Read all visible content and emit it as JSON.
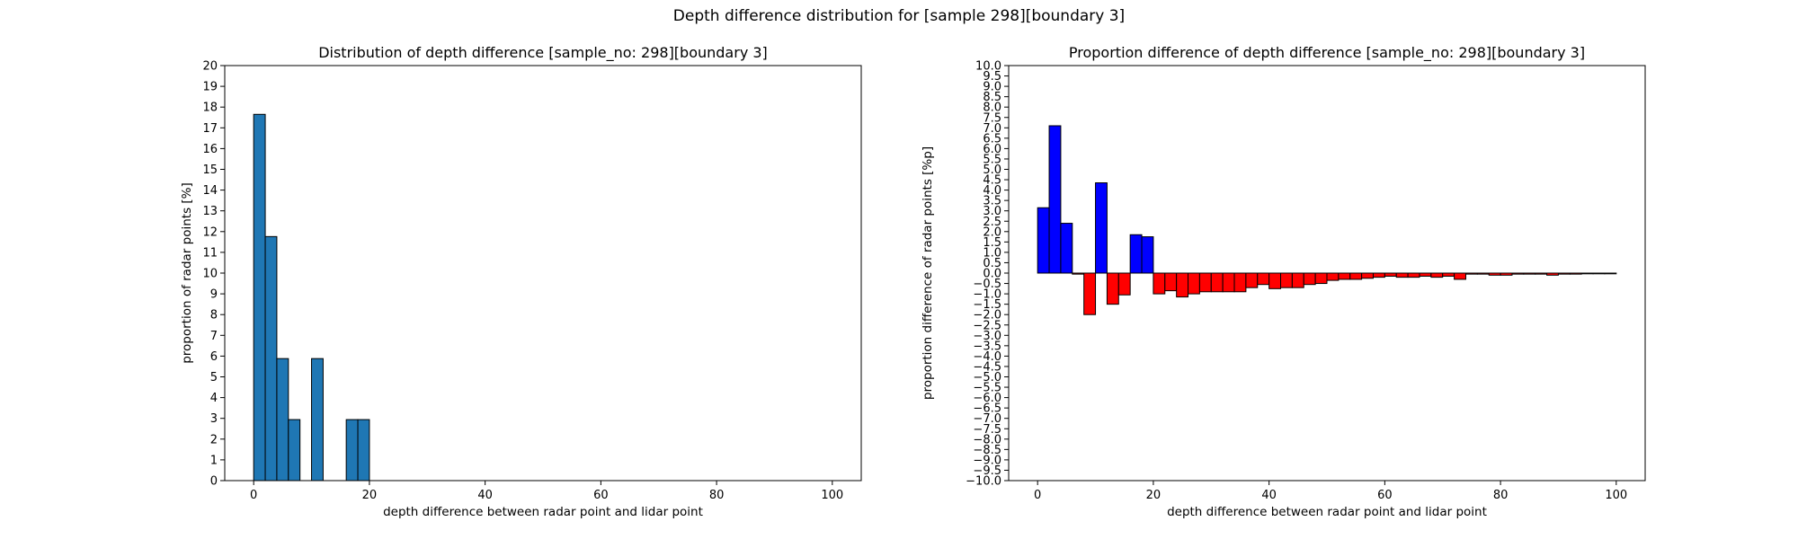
{
  "figure": {
    "suptitle": "Depth difference distribution for [sample 298][boundary 3]"
  },
  "chart_data": [
    {
      "type": "bar",
      "title": "Distribution of depth difference [sample_no: 298][boundary 3]",
      "xlabel": "depth difference between radar point and lidar point",
      "ylabel": "proportion of radar points [%]",
      "xlim": [
        -5,
        105
      ],
      "ylim": [
        0,
        20
      ],
      "xticks": [
        0,
        20,
        40,
        60,
        80,
        100
      ],
      "yticks": [
        0,
        1,
        2,
        3,
        4,
        5,
        6,
        7,
        8,
        9,
        10,
        11,
        12,
        13,
        14,
        15,
        16,
        17,
        18,
        19,
        20
      ],
      "bin_width": 2,
      "bin_starts": [
        0,
        2,
        4,
        6,
        8,
        10,
        12,
        14,
        16,
        18
      ],
      "values": [
        17.65,
        11.76,
        5.88,
        2.94,
        0,
        5.88,
        0,
        0,
        2.94,
        2.94
      ],
      "color": "#1f77b4"
    },
    {
      "type": "bar",
      "title": "Proportion difference of depth difference [sample_no: 298][boundary 3]",
      "xlabel": "depth difference between radar point and lidar point",
      "ylabel": "proportion difference of radar points [%p]",
      "xlim": [
        -5,
        105
      ],
      "ylim": [
        -10,
        10
      ],
      "xticks": [
        0,
        20,
        40,
        60,
        80,
        100
      ],
      "yticks": [
        -10.0,
        -9.5,
        -9.0,
        -8.5,
        -8.0,
        -7.5,
        -7.0,
        -6.5,
        -6.0,
        -5.5,
        -5.0,
        -4.5,
        -4.0,
        -3.5,
        -3.0,
        -2.5,
        -2.0,
        -1.5,
        -1.0,
        -0.5,
        0.0,
        0.5,
        1.0,
        1.5,
        2.0,
        2.5,
        3.0,
        3.5,
        4.0,
        4.5,
        5.0,
        5.5,
        6.0,
        6.5,
        7.0,
        7.5,
        8.0,
        8.5,
        9.0,
        9.5,
        10.0
      ],
      "bin_width": 2,
      "bin_starts": [
        0,
        2,
        4,
        6,
        8,
        10,
        12,
        14,
        16,
        18,
        20,
        22,
        24,
        26,
        28,
        30,
        32,
        34,
        36,
        38,
        40,
        42,
        44,
        46,
        48,
        50,
        52,
        54,
        56,
        58,
        60,
        62,
        64,
        66,
        68,
        70,
        72,
        74,
        76,
        78,
        80,
        82,
        84,
        86,
        88,
        90,
        92,
        94,
        96,
        98
      ],
      "values": [
        3.15,
        7.1,
        2.4,
        -0.05,
        -2.0,
        4.35,
        -1.5,
        -1.05,
        1.85,
        1.75,
        -1.0,
        -0.85,
        -1.15,
        -1.0,
        -0.9,
        -0.9,
        -0.9,
        -0.9,
        -0.7,
        -0.55,
        -0.75,
        -0.7,
        -0.7,
        -0.55,
        -0.5,
        -0.35,
        -0.3,
        -0.3,
        -0.25,
        -0.2,
        -0.15,
        -0.2,
        -0.2,
        -0.15,
        -0.2,
        -0.15,
        -0.3,
        -0.05,
        -0.05,
        -0.1,
        -0.1,
        -0.05,
        -0.05,
        -0.05,
        -0.1,
        -0.05,
        -0.05,
        -0.02,
        -0.02,
        -0.02
      ],
      "positive_color": "#0000ff",
      "negative_color": "#ff0000"
    }
  ]
}
